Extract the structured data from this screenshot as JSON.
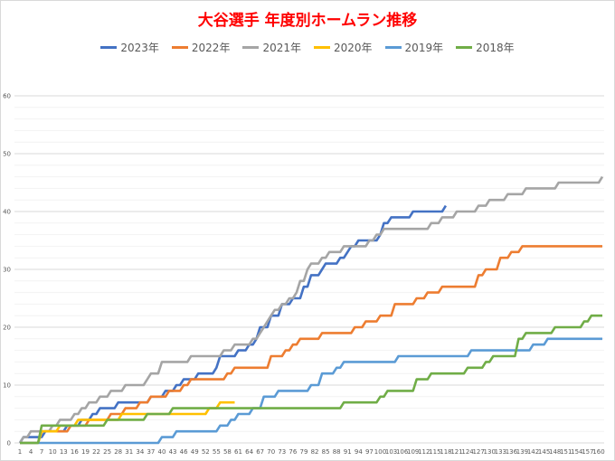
{
  "chart_data": {
    "type": "line",
    "title": "大谷選手 年度別ホームラン推移",
    "xlabel": "",
    "ylabel": "",
    "xlim": [
      1,
      161
    ],
    "ylim": [
      0,
      60
    ],
    "yticks": [
      0,
      10,
      20,
      30,
      40,
      50,
      60
    ],
    "xtick_step": 3,
    "legend_position": "top",
    "grid": true,
    "series": [
      {
        "name": "2023年",
        "color": "#4472C4",
        "last_game": 118,
        "steps": [
          [
            2,
            1
          ],
          [
            8,
            2
          ],
          [
            14,
            3
          ],
          [
            18,
            4
          ],
          [
            21,
            5
          ],
          [
            23,
            6
          ],
          [
            28,
            7
          ],
          [
            37,
            8
          ],
          [
            41,
            9
          ],
          [
            44,
            10
          ],
          [
            46,
            11
          ],
          [
            50,
            12
          ],
          [
            55,
            13
          ],
          [
            56,
            15
          ],
          [
            61,
            16
          ],
          [
            64,
            17
          ],
          [
            66,
            18
          ],
          [
            67,
            20
          ],
          [
            70,
            22
          ],
          [
            73,
            24
          ],
          [
            76,
            25
          ],
          [
            79,
            27
          ],
          [
            81,
            29
          ],
          [
            84,
            30
          ],
          [
            85,
            31
          ],
          [
            89,
            32
          ],
          [
            91,
            33
          ],
          [
            92,
            34
          ],
          [
            94,
            35
          ],
          [
            100,
            36
          ],
          [
            101,
            38
          ],
          [
            103,
            39
          ],
          [
            109,
            40
          ],
          [
            118,
            41
          ]
        ]
      },
      {
        "name": "2022年",
        "color": "#ED7D31",
        "last_game": 161,
        "steps": [
          [
            7,
            2
          ],
          [
            15,
            3
          ],
          [
            20,
            4
          ],
          [
            26,
            5
          ],
          [
            30,
            6
          ],
          [
            34,
            7
          ],
          [
            37,
            8
          ],
          [
            42,
            9
          ],
          [
            46,
            10
          ],
          [
            48,
            11
          ],
          [
            58,
            12
          ],
          [
            60,
            13
          ],
          [
            70,
            15
          ],
          [
            74,
            16
          ],
          [
            76,
            17
          ],
          [
            78,
            18
          ],
          [
            84,
            19
          ],
          [
            93,
            20
          ],
          [
            96,
            21
          ],
          [
            100,
            22
          ],
          [
            104,
            24
          ],
          [
            110,
            25
          ],
          [
            113,
            26
          ],
          [
            117,
            27
          ],
          [
            127,
            29
          ],
          [
            129,
            30
          ],
          [
            133,
            32
          ],
          [
            136,
            33
          ],
          [
            139,
            34
          ]
        ]
      },
      {
        "name": "2021年",
        "color": "#A5A5A5",
        "last_game": 161,
        "steps": [
          [
            2,
            1
          ],
          [
            4,
            2
          ],
          [
            10,
            3
          ],
          [
            12,
            4
          ],
          [
            16,
            5
          ],
          [
            18,
            6
          ],
          [
            20,
            7
          ],
          [
            23,
            8
          ],
          [
            26,
            9
          ],
          [
            30,
            10
          ],
          [
            36,
            11
          ],
          [
            37,
            12
          ],
          [
            40,
            14
          ],
          [
            48,
            15
          ],
          [
            57,
            16
          ],
          [
            60,
            17
          ],
          [
            65,
            18
          ],
          [
            67,
            19
          ],
          [
            68,
            20
          ],
          [
            69,
            21
          ],
          [
            70,
            22
          ],
          [
            71,
            23
          ],
          [
            73,
            24
          ],
          [
            75,
            25
          ],
          [
            77,
            26
          ],
          [
            78,
            28
          ],
          [
            80,
            30
          ],
          [
            81,
            31
          ],
          [
            84,
            32
          ],
          [
            86,
            33
          ],
          [
            90,
            34
          ],
          [
            97,
            35
          ],
          [
            99,
            36
          ],
          [
            101,
            37
          ],
          [
            114,
            38
          ],
          [
            117,
            39
          ],
          [
            121,
            40
          ],
          [
            127,
            41
          ],
          [
            130,
            42
          ],
          [
            135,
            43
          ],
          [
            140,
            44
          ],
          [
            149,
            45
          ],
          [
            161,
            46
          ]
        ]
      },
      {
        "name": "2020年",
        "color": "#FFC000",
        "last_game": 60,
        "steps": [
          [
            7,
            2
          ],
          [
            12,
            3
          ],
          [
            17,
            4
          ],
          [
            29,
            5
          ],
          [
            53,
            6
          ],
          [
            56,
            7
          ]
        ]
      },
      {
        "name": "2019年",
        "color": "#5B9BD5",
        "last_game": 161,
        "steps": [
          [
            40,
            1
          ],
          [
            44,
            2
          ],
          [
            56,
            3
          ],
          [
            59,
            4
          ],
          [
            61,
            5
          ],
          [
            65,
            6
          ],
          [
            68,
            8
          ],
          [
            72,
            9
          ],
          [
            81,
            10
          ],
          [
            84,
            12
          ],
          [
            88,
            13
          ],
          [
            90,
            14
          ],
          [
            105,
            15
          ],
          [
            125,
            16
          ],
          [
            142,
            17
          ],
          [
            146,
            18
          ]
        ]
      },
      {
        "name": "2018年",
        "color": "#70AD47",
        "last_game": 161,
        "steps": [
          [
            7,
            3
          ],
          [
            25,
            4
          ],
          [
            36,
            5
          ],
          [
            43,
            6
          ],
          [
            90,
            7
          ],
          [
            100,
            8
          ],
          [
            102,
            9
          ],
          [
            110,
            11
          ],
          [
            114,
            12
          ],
          [
            124,
            13
          ],
          [
            129,
            14
          ],
          [
            131,
            15
          ],
          [
            138,
            18
          ],
          [
            140,
            19
          ],
          [
            148,
            20
          ],
          [
            156,
            21
          ],
          [
            158,
            22
          ]
        ]
      }
    ]
  }
}
